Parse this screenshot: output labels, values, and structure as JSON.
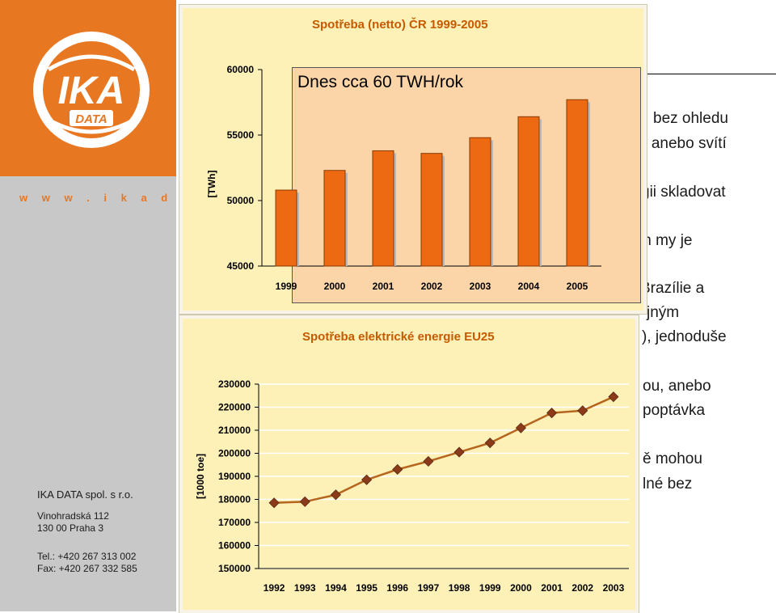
{
  "sidebar": {
    "logo_text": "IKA",
    "logo_sub": "DATA",
    "url": "www.ikadata.cz",
    "company": "IKA DATA spol. s r.o.",
    "address_line1": "Vinohradská 112",
    "address_line2": "130 00 Praha 3",
    "phone": "Tel.: +420 267 313 002",
    "fax": "Fax: +420 267 332 585",
    "colors": {
      "brand": "#e87722",
      "panel": "#c8c8c8"
    }
  },
  "background_text": [
    "bez ohledu",
    "e anebo svítí",
    "gii skladovat",
    "m my je",
    "Brazílie a",
    "jným",
    "), jednoduše",
    "ou, anebo",
    "poptávka",
    "ě mohou",
    "lné bez"
  ],
  "chart_data": [
    {
      "type": "bar",
      "title": "Spotřeba (netto) ČR 1999-2005",
      "ylabel": "[TWh]",
      "categories": [
        "1999",
        "2000",
        "2001",
        "2002",
        "2003",
        "2004",
        "2005"
      ],
      "values": [
        50800,
        52300,
        53800,
        53600,
        54800,
        56400,
        57700
      ],
      "ylim": [
        45000,
        60000
      ],
      "yticks": [
        45000,
        50000,
        55000,
        60000
      ],
      "note": "Dnes cca 60 TWH/rok",
      "colors": {
        "bar": "#ee6a12",
        "background": "#fdf1b8",
        "note_box": "#fbd5a8"
      }
    },
    {
      "type": "line",
      "title": "Spotřeba elektrické energie EU25",
      "ylabel": "[1000 toe]",
      "categories": [
        "1992",
        "1993",
        "1994",
        "1995",
        "1996",
        "1997",
        "1998",
        "1999",
        "2000",
        "2001",
        "2002",
        "2003"
      ],
      "values": [
        178500,
        179000,
        182000,
        188500,
        193000,
        196500,
        200500,
        204500,
        211000,
        217500,
        218500,
        224500
      ],
      "ylim": [
        150000,
        230000
      ],
      "yticks": [
        150000,
        160000,
        170000,
        180000,
        190000,
        200000,
        210000,
        220000,
        230000
      ],
      "grid": true,
      "colors": {
        "line": "#b5651d",
        "marker": "#8b3a1a",
        "background": "#fdf1b8"
      }
    }
  ]
}
